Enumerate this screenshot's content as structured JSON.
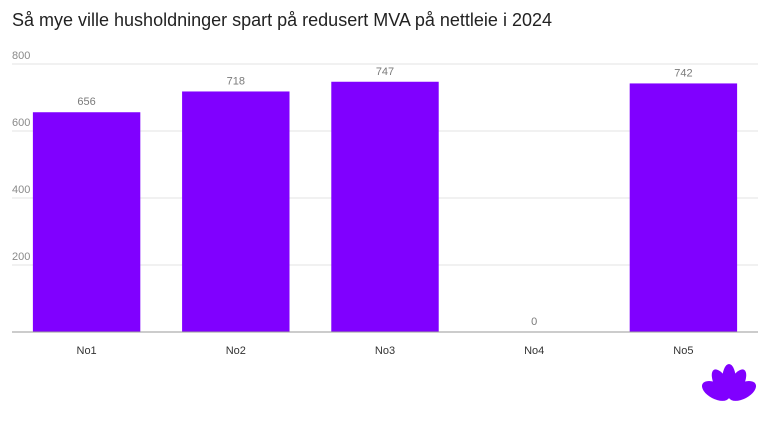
{
  "colors": {
    "bar": "#8000ff",
    "logo": "#8000ff",
    "grid": "#e3e3e3",
    "axis": "#9a9a9a"
  },
  "logo_icon": "petal-logo-icon",
  "chart_data": {
    "type": "bar",
    "title": "Så mye ville husholdninger spart på redusert MVA på nettleie i 2024",
    "categories": [
      "No1",
      "No2",
      "No3",
      "No4",
      "No5"
    ],
    "values": [
      656,
      718,
      747,
      0,
      742
    ],
    "value_labels": [
      "656",
      "718",
      "747",
      "0",
      "742"
    ],
    "ylim": [
      0,
      800
    ],
    "yticks": [
      200,
      400,
      600,
      800
    ],
    "ytick_labels": [
      "200",
      "400",
      "600",
      "800"
    ],
    "xlabel": "",
    "ylabel": "",
    "grid": true,
    "legend": "none"
  }
}
